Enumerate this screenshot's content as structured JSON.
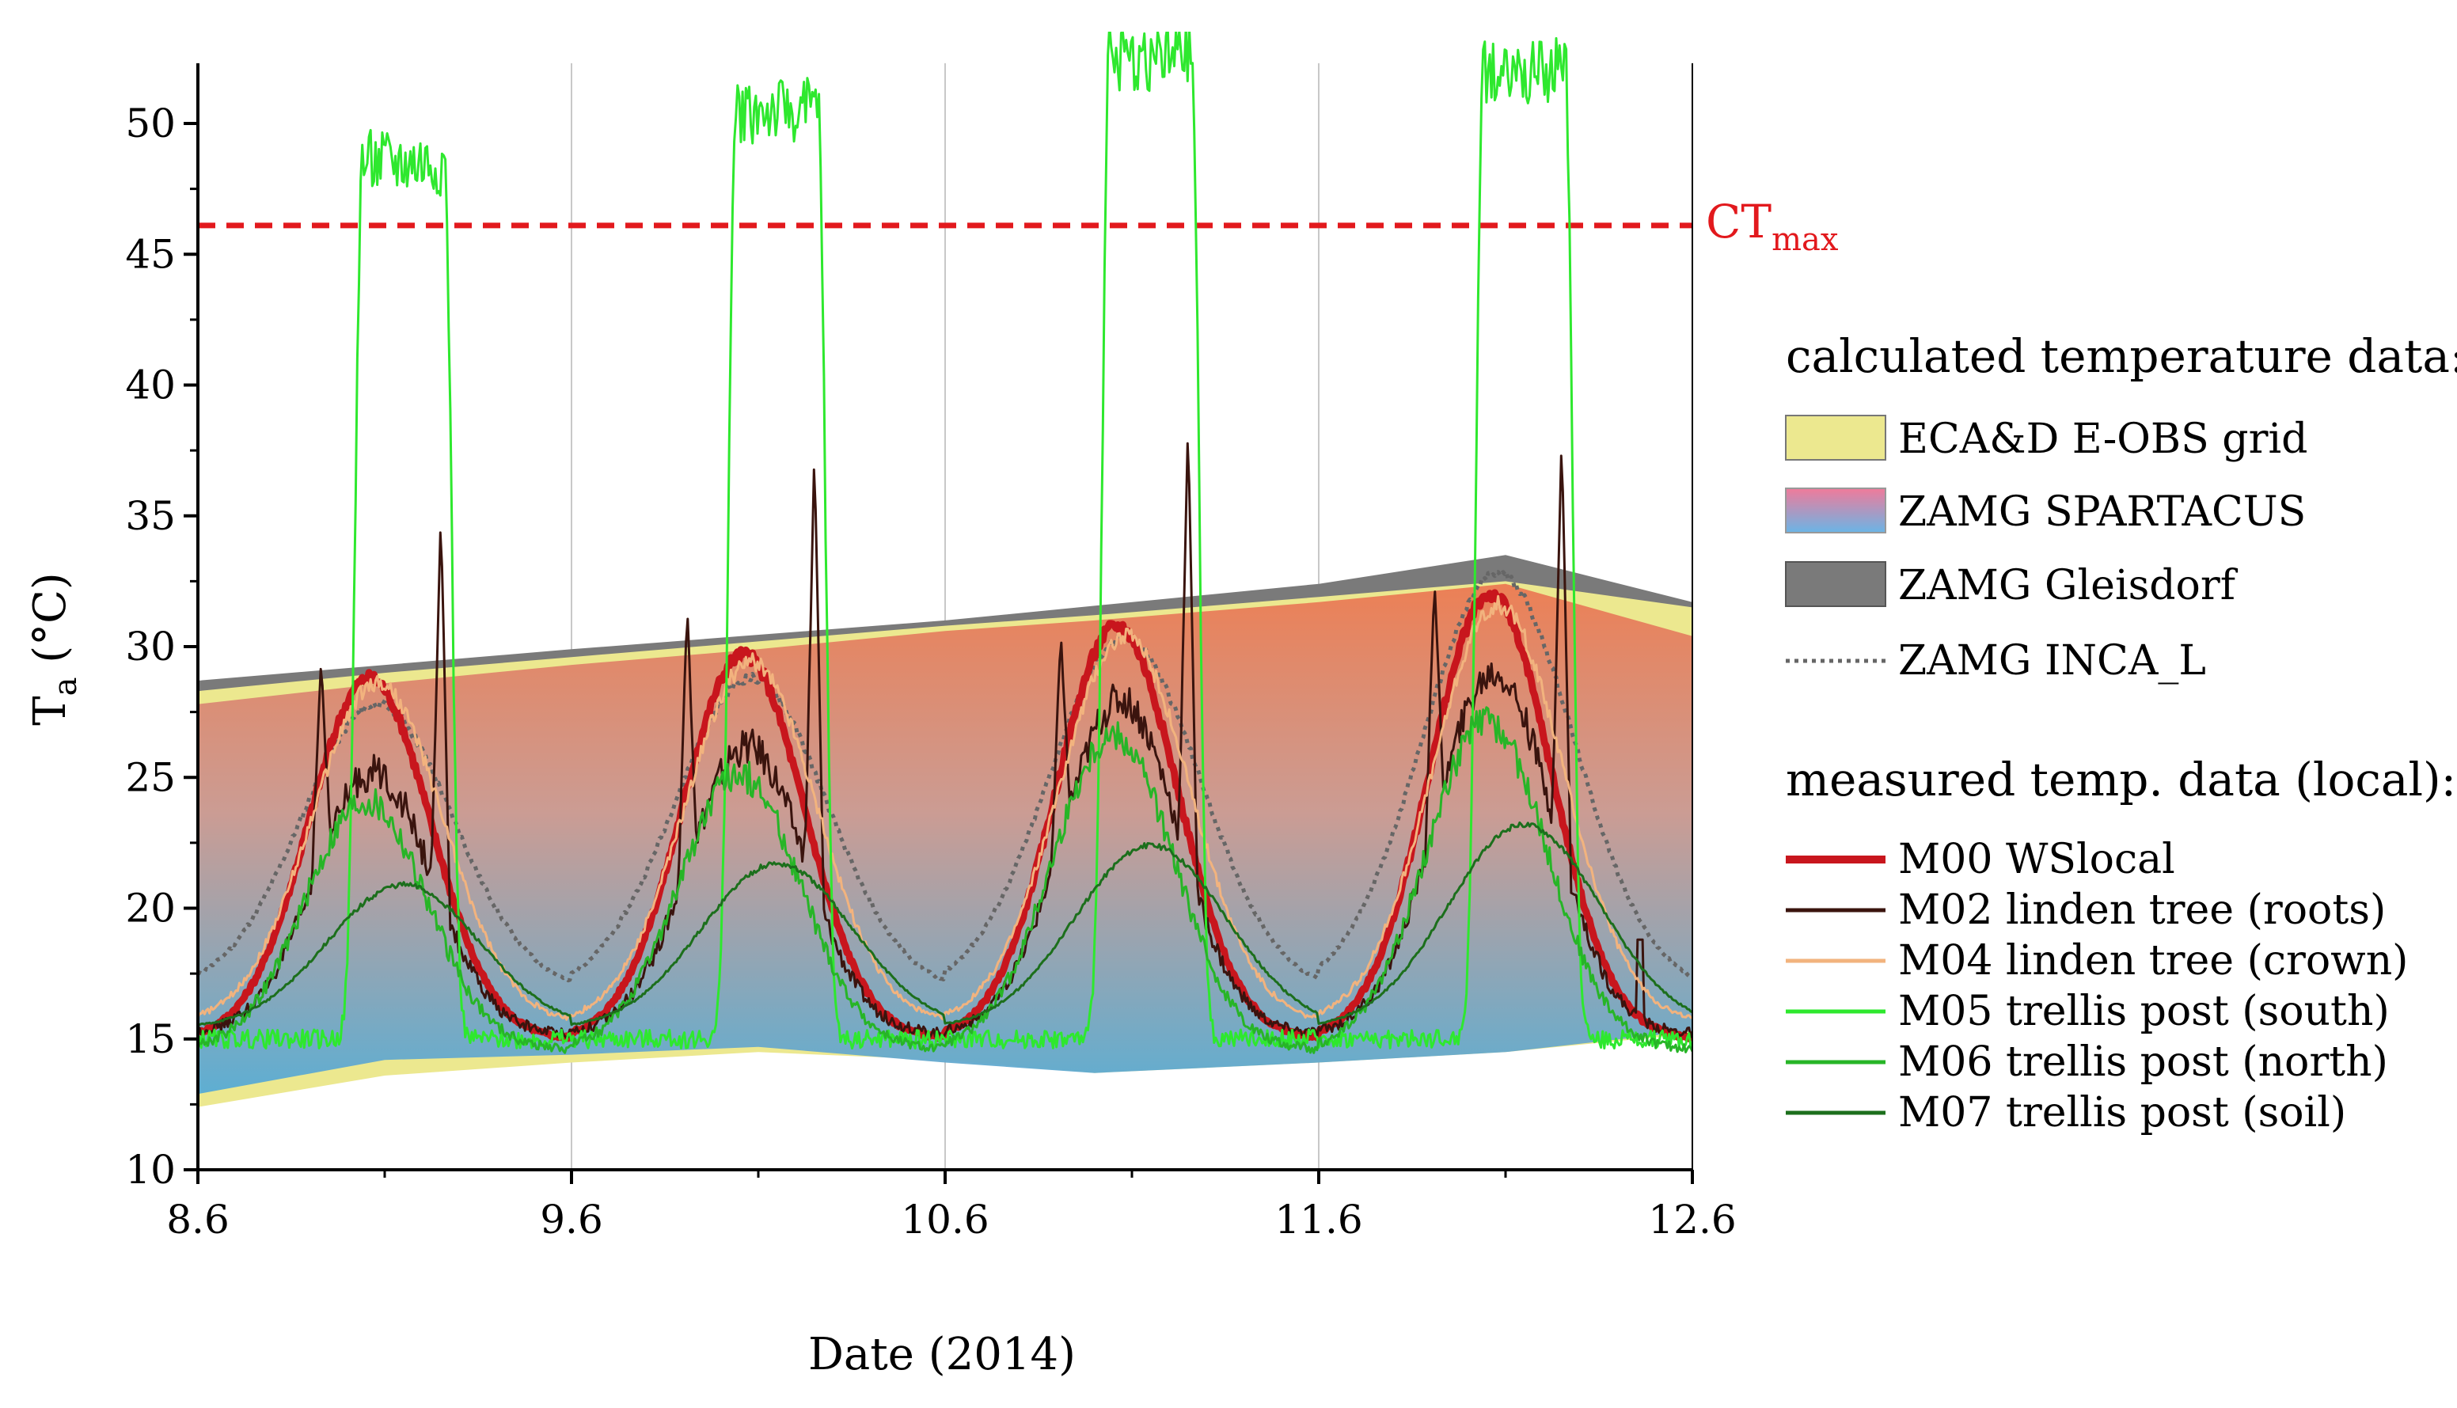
{
  "chart_data": {
    "type": "line",
    "xlabel": "Date (2014)",
    "ylabel": "T",
    "ylabel_sub": "a",
    "ylabel_unit": " (°C)",
    "xlim": [
      0,
      4
    ],
    "ylim": [
      10,
      52
    ],
    "x_ticks": [
      0,
      1,
      2,
      3,
      4
    ],
    "x_tick_labels": [
      "8.6",
      "9.6",
      "10.6",
      "11.6",
      "12.6"
    ],
    "y_ticks": [
      10,
      15,
      20,
      25,
      30,
      35,
      40,
      45,
      50
    ],
    "y_tick_labels": [
      "10",
      "15",
      "20",
      "25",
      "30",
      "35",
      "40",
      "45",
      "50"
    ],
    "grid": "vertical",
    "threshold": {
      "label": "CT",
      "label_sub": "max",
      "value": 46.1,
      "color": "#e2191d"
    },
    "bands": [
      {
        "name": "ZAMG Gleisdorf",
        "color": "#7a7a7a",
        "x": [
          0,
          1,
          2,
          3,
          3.5,
          4
        ],
        "upper": [
          28.7,
          29.9,
          31.0,
          32.4,
          33.5,
          31.7
        ],
        "lower": [
          28.0,
          29.3,
          30.5,
          31.8,
          32.3,
          30.7
        ]
      },
      {
        "name": "ECA&D E-OBS grid",
        "color": "#ece88f",
        "x": [
          0,
          0.5,
          1,
          1.5,
          2,
          2.4,
          3,
          3.5,
          4
        ],
        "upper": [
          28.3,
          29.0,
          29.6,
          30.2,
          30.8,
          31.2,
          31.9,
          32.5,
          31.5
        ],
        "lower": [
          12.4,
          13.6,
          14.1,
          14.5,
          14.2,
          13.7,
          14.1,
          14.5,
          15.2
        ]
      },
      {
        "name": "ZAMG SPARTACUS",
        "color_top": "#ea7d57",
        "color_bottom": "#5cadd8",
        "x": [
          0,
          0.5,
          1,
          1.5,
          2,
          2.4,
          3,
          3.5,
          4
        ],
        "upper": [
          27.8,
          28.6,
          29.3,
          29.9,
          30.6,
          31.0,
          31.7,
          32.4,
          30.4
        ],
        "lower": [
          12.9,
          14.2,
          14.4,
          14.7,
          14.1,
          13.7,
          14.1,
          14.5,
          15.3
        ]
      }
    ],
    "series": [
      {
        "name": "ZAMG INCA_L",
        "color": "#666666",
        "style": "dotted",
        "base": 16.8,
        "amp": [
          11.0,
          12.0,
          13.5,
          16.0
        ],
        "phase": 0.0,
        "peak_x": 0.48,
        "width": 0.3,
        "noise": 0.25,
        "spikes": [],
        "jumps": [],
        "zoff": 0.0
      },
      {
        "name": "M00 WSlocal",
        "color": "#c8161d",
        "style": "thick",
        "base": 15.0,
        "amp": [
          13.8,
          14.7,
          15.8,
          17.0
        ],
        "phase": 0.0,
        "peak_x": 0.46,
        "width": 0.24,
        "noise": 0.35,
        "spikes": [],
        "jumps": [],
        "zoff": 0.0
      },
      {
        "name": "M02 linden tree (roots)",
        "color": "#3a140e",
        "style": "solid",
        "base": 15.2,
        "amp": [
          10.0,
          11.0,
          12.8,
          13.8
        ],
        "phase": 0.0,
        "peak_x": 0.47,
        "width": 0.23,
        "noise": 1.0,
        "spikes": [
          [
            0.33,
            29.5
          ],
          [
            0.65,
            35.0
          ],
          [
            1.31,
            31.5
          ],
          [
            1.65,
            37.5
          ],
          [
            2.31,
            30.5
          ],
          [
            2.65,
            38.5
          ],
          [
            3.31,
            32.5
          ],
          [
            3.65,
            38.0
          ]
        ],
        "jumps": [
          [
            3.86,
            18.8
          ]
        ],
        "zoff": 0.0
      },
      {
        "name": "M04 linden tree (crown)",
        "color": "#f2b37e",
        "style": "solid",
        "base": 15.6,
        "amp": [
          13.0,
          13.8,
          14.8,
          16.0
        ],
        "phase": 0.0,
        "peak_x": 0.48,
        "width": 0.26,
        "noise": 0.5,
        "spikes": [],
        "jumps": [],
        "zoff": 0.0
      },
      {
        "name": "M05 trellis post (south)",
        "color": "#2ee82e",
        "style": "solid",
        "base": 15.0,
        "amp": [
          33.5,
          35.5,
          37.5,
          37.0
        ],
        "phase": 0.0,
        "peak_x": 0.55,
        "width": 0.11,
        "noise": 1.8,
        "spikes": [],
        "jumps": [],
        "zoff": 0.0,
        "plateau": true
      },
      {
        "name": "M06 trellis post (north)",
        "color": "#27b527",
        "style": "solid",
        "base": 15.0,
        "amp": [
          9.5,
          10.5,
          12.0,
          12.5
        ],
        "phase": 0.0,
        "peak_x": 0.45,
        "width": 0.24,
        "noise": 0.9,
        "spikes": [],
        "jumps": [],
        "zoff": -0.4
      },
      {
        "name": "M07 trellis post (soil)",
        "color": "#1c6f1c",
        "style": "solid",
        "base": 15.4,
        "amp": [
          5.5,
          6.3,
          7.0,
          7.8
        ],
        "phase": 0.0,
        "peak_x": 0.55,
        "width": 0.3,
        "noise": 0.15,
        "spikes": [],
        "jumps": [],
        "zoff": 0.0
      }
    ]
  },
  "legend": {
    "calc_heading": "calculated temperature data:",
    "calc_items": [
      {
        "name": "ECA&D E-OBS grid",
        "swatch": "yellow"
      },
      {
        "name": "ZAMG  SPARTACUS",
        "swatch": "gradient"
      },
      {
        "name": "ZAMG  Gleisdorf",
        "swatch": "gray"
      },
      {
        "name": "ZAMG  INCA_L",
        "swatch": "dotted"
      }
    ],
    "meas_heading": "measured temp. data (local):",
    "meas_items": [
      {
        "name": "M00 WSlocal",
        "color": "#c8161d"
      },
      {
        "name": "M02 linden tree (roots)",
        "color": "#3a140e"
      },
      {
        "name": "M04 linden tree (crown)",
        "color": "#f2b37e"
      },
      {
        "name": "M05 trellis post (south)",
        "color": "#2ee82e"
      },
      {
        "name": "M06 trellis post (north)",
        "color": "#27b527"
      },
      {
        "name": "M07 trellis post (soil)",
        "color": "#1c6f1c"
      }
    ]
  }
}
